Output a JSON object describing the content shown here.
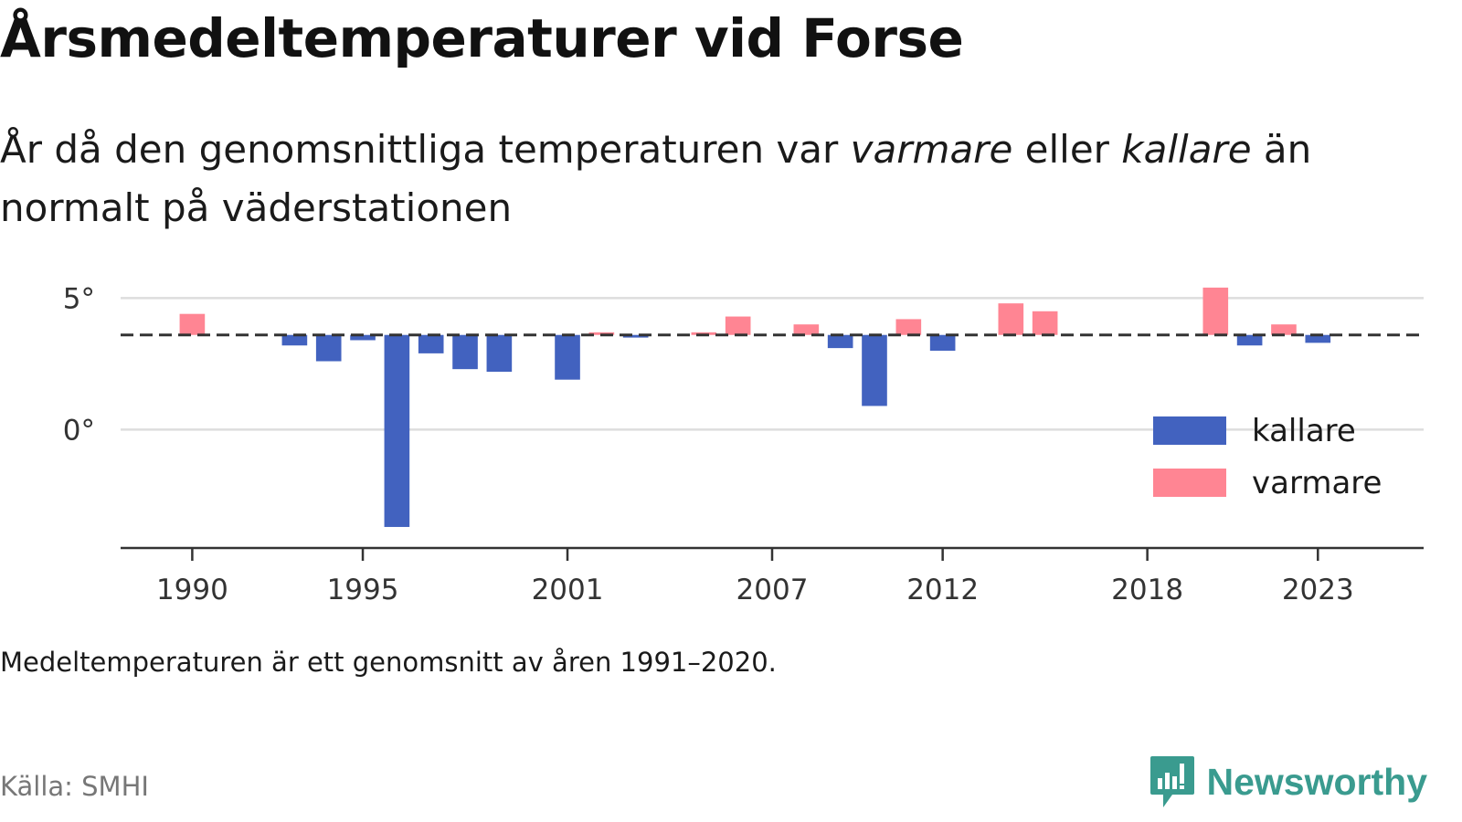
{
  "header": {
    "title": "Årsmedeltemperaturer vid Forse",
    "subtitle_part1": "År då den genomsnittliga temperaturen var ",
    "subtitle_warm": "varmare",
    "subtitle_part2": " eller ",
    "subtitle_cold": "kallare",
    "subtitle_part3": " än normalt på väderstationen"
  },
  "footer": {
    "note": "Medeltemperaturen är ett genomsnitt av åren 1991–2020.",
    "source": "Källa: SMHI",
    "brand": "Newsworthy"
  },
  "colors": {
    "kallare": "#4262bf",
    "varmare": "#ff8593",
    "baseline": "#333333",
    "grid": "#dddddd",
    "brand": "#3a9b8f"
  },
  "chart_data": {
    "type": "bar",
    "baseline": 3.6,
    "baseline_style": "dashed",
    "ylim": [
      -4.5,
      5.5
    ],
    "yticks": [
      0,
      5
    ],
    "ytick_labels": [
      "0°",
      "5°"
    ],
    "xlim": [
      1987.9,
      2026.1
    ],
    "xticks": [
      1990,
      1995,
      2001,
      2007,
      2012,
      2018,
      2023
    ],
    "grid": true,
    "legend_position": "right",
    "series": [
      {
        "name": "kallare",
        "color": "#4262bf",
        "x": [
          1993,
          1994,
          1995,
          1996,
          1997,
          1998,
          1999,
          2001,
          2003,
          2009,
          2010,
          2012,
          2021,
          2023
        ],
        "values": [
          3.2,
          2.6,
          3.4,
          -3.7,
          2.9,
          2.3,
          2.2,
          1.9,
          3.5,
          3.1,
          0.9,
          3.0,
          3.2,
          3.3
        ]
      },
      {
        "name": "varmare",
        "color": "#ff8593",
        "x": [
          1990,
          2002,
          2005,
          2006,
          2008,
          2011,
          2014,
          2015,
          2020,
          2022
        ],
        "values": [
          4.4,
          3.7,
          3.7,
          4.3,
          4.0,
          4.2,
          4.8,
          4.5,
          5.4,
          4.0
        ]
      }
    ]
  }
}
